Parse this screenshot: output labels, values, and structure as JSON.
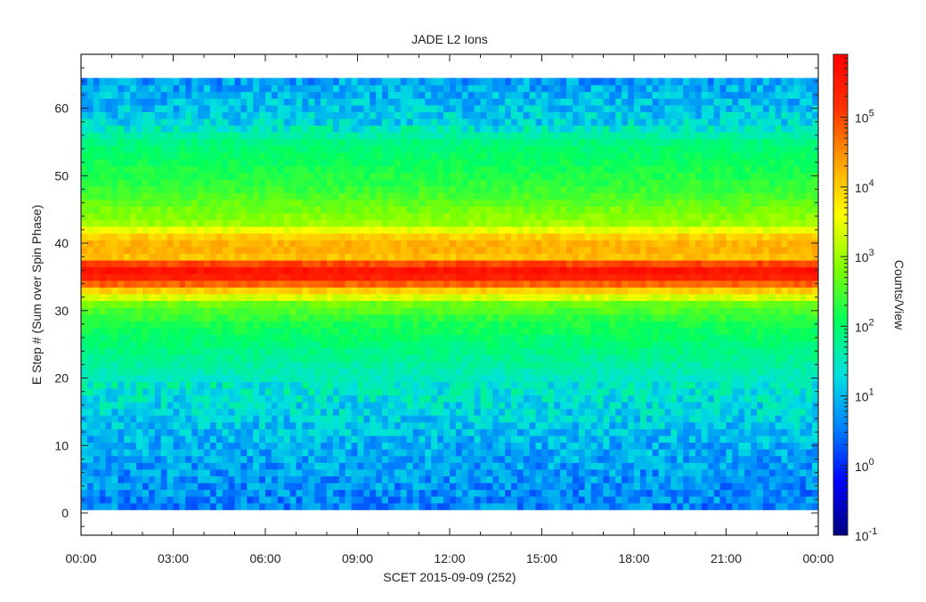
{
  "chart_data": {
    "type": "heatmap",
    "title": "JADE L2 Ions",
    "xlabel": "SCET 2015-09-09 (252)",
    "ylabel": "E Step # (Sum over Spin Phase)",
    "x_ticks": [
      "00:00",
      "03:00",
      "06:00",
      "09:00",
      "12:00",
      "15:00",
      "18:00",
      "21:00",
      "00:00"
    ],
    "x_range_hours": [
      0,
      24
    ],
    "y_ticks": [
      0,
      10,
      20,
      30,
      40,
      50,
      60
    ],
    "ylim": [
      -3.3,
      68
    ],
    "data_y_range": [
      1,
      64
    ],
    "colorbar": {
      "label": "Counts/View",
      "scale": "log",
      "range": [
        0.1,
        800000
      ],
      "tick_exponents": [
        -1,
        0,
        1,
        2,
        3,
        4,
        5
      ],
      "colors": [
        "#000080",
        "#0000ff",
        "#0080ff",
        "#00e0e0",
        "#00ff60",
        "#80ff00",
        "#ffff00",
        "#ffa000",
        "#ff3000",
        "#ff0000"
      ]
    },
    "profile": [
      {
        "estep": 1,
        "log10_counts": 0.6
      },
      {
        "estep": 10,
        "log10_counts": 0.9
      },
      {
        "estep": 20,
        "log10_counts": 1.5
      },
      {
        "estep": 28,
        "log10_counts": 2.2
      },
      {
        "estep": 31,
        "log10_counts": 2.7
      },
      {
        "estep": 33,
        "log10_counts": 4.0
      },
      {
        "estep": 34,
        "log10_counts": 4.8
      },
      {
        "estep": 35,
        "log10_counts": 5.4
      },
      {
        "estep": 36,
        "log10_counts": 5.6
      },
      {
        "estep": 37,
        "log10_counts": 5.0
      },
      {
        "estep": 38,
        "log10_counts": 4.1
      },
      {
        "estep": 39.5,
        "log10_counts": 4.3
      },
      {
        "estep": 41,
        "log10_counts": 4.0
      },
      {
        "estep": 43,
        "log10_counts": 3.0
      },
      {
        "estep": 48,
        "log10_counts": 2.4
      },
      {
        "estep": 55,
        "log10_counts": 1.9
      },
      {
        "estep": 58,
        "log10_counts": 1.2
      },
      {
        "estep": 64,
        "log10_counts": 0.8
      }
    ]
  }
}
